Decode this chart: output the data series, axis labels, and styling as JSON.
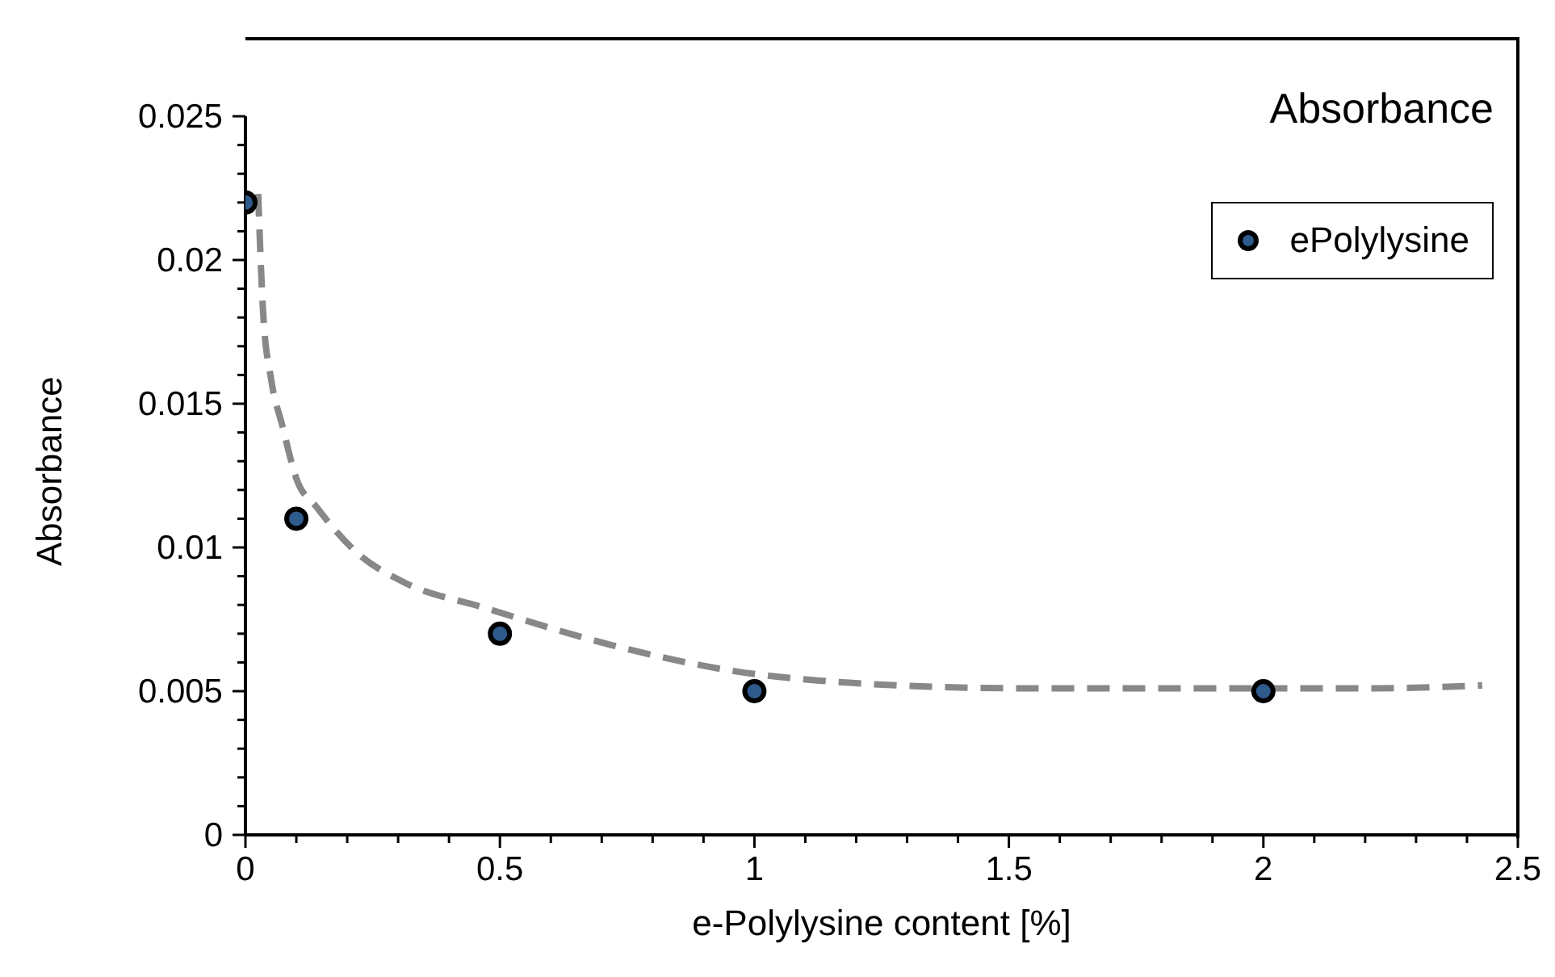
{
  "chart_data": {
    "type": "scatter",
    "title": "Absorbance",
    "xlabel": "e-Polylysine content [%]",
    "ylabel": "Absorbance",
    "series": [
      {
        "name": "ePolylysine",
        "color": "#2e5a8c",
        "x": [
          0,
          0.1,
          0.5,
          1,
          2
        ],
        "values": [
          0.022,
          0.011,
          0.007,
          0.005,
          0.005
        ]
      },
      {
        "type": "line",
        "color": "#888888",
        "line_style": "dashed",
        "marker": "none",
        "x": [
          0.025,
          0.035,
          0.05,
          0.073,
          0.1,
          0.14,
          0.22,
          0.31,
          0.47,
          0.72,
          0.96,
          1.18,
          1.53,
          1.88,
          2.22,
          2.43
        ],
        "values": [
          0.0223,
          0.0181,
          0.0159,
          0.0142,
          0.0124,
          0.0114,
          0.0098,
          0.0088,
          0.0079,
          0.0066,
          0.0057,
          0.0053,
          0.0051,
          0.0051,
          0.0051,
          0.0052
        ]
      }
    ],
    "marker": "circle",
    "legend": "top right",
    "grid": false,
    "xlim": [
      0,
      2.5
    ],
    "xticks": [
      0,
      {
        "value": 0.1,
        "label": null
      },
      {
        "value": 0.2,
        "label": null
      },
      {
        "value": 0.3,
        "label": null
      },
      {
        "value": 0.4,
        "label": null
      },
      0.5,
      {
        "value": 0.6,
        "label": null
      },
      {
        "value": 0.7,
        "label": null
      },
      {
        "value": 0.8,
        "label": null
      },
      {
        "value": 0.9,
        "label": null
      },
      1,
      {
        "value": 1.1,
        "label": null
      },
      {
        "value": 1.2,
        "label": null
      },
      {
        "value": 1.3,
        "label": null
      },
      {
        "value": 1.4,
        "label": null
      },
      1.5,
      {
        "value": 1.6,
        "label": null
      },
      {
        "value": 1.7,
        "label": null
      },
      {
        "value": 1.8,
        "label": null
      },
      {
        "value": 1.9,
        "label": null
      },
      2,
      {
        "value": 2.1,
        "label": null
      },
      {
        "value": 2.2,
        "label": null
      },
      {
        "value": 2.3,
        "label": null
      },
      {
        "value": 2.4,
        "label": null
      },
      2.5
    ],
    "ylim": [
      0,
      0.025
    ],
    "yticks": [
      0,
      {
        "value": 0.001,
        "label": null
      },
      {
        "value": 0.002,
        "label": null
      },
      {
        "value": 0.003,
        "label": null
      },
      {
        "value": 0.004,
        "label": null
      },
      0.005,
      {
        "value": 0.006,
        "label": null
      },
      {
        "value": 0.007,
        "label": null
      },
      {
        "value": 0.008,
        "label": null
      },
      {
        "value": 0.009,
        "label": null
      },
      0.01,
      {
        "value": 0.011,
        "label": null
      },
      {
        "value": 0.012,
        "label": null
      },
      {
        "value": 0.013,
        "label": null
      },
      {
        "value": 0.014,
        "label": null
      },
      0.015,
      {
        "value": 0.016,
        "label": null
      },
      {
        "value": 0.017,
        "label": null
      },
      {
        "value": 0.018,
        "label": null
      },
      {
        "value": 0.019,
        "label": null
      },
      0.02,
      {
        "value": 0.021,
        "label": null
      },
      {
        "value": 0.022,
        "label": null
      },
      {
        "value": 0.023,
        "label": null
      },
      {
        "value": 0.024,
        "label": null
      },
      0.025
    ]
  }
}
